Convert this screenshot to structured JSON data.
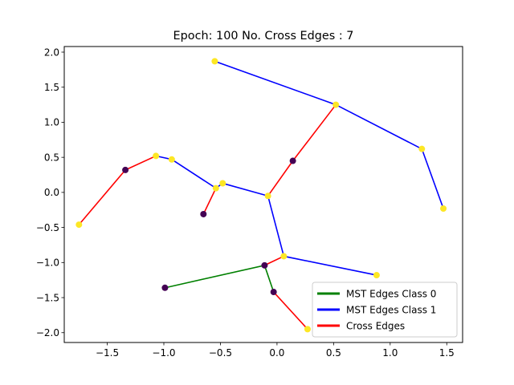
{
  "chart_data": {
    "type": "scatter",
    "title": "Epoch: 100 No. Cross Edges : 7",
    "xlabel": "",
    "ylabel": "",
    "xlim": [
      -1.88,
      1.64
    ],
    "ylim": [
      -2.14,
      2.08
    ],
    "x_ticks": [
      -1.5,
      -1.0,
      -0.5,
      0.0,
      0.5,
      1.0,
      1.5
    ],
    "x_tick_labels": [
      "−1.5",
      "−1.0",
      "−0.5",
      "0.0",
      "0.5",
      "1.0",
      "1.5"
    ],
    "y_ticks": [
      -2.0,
      -1.5,
      -1.0,
      -0.5,
      0.0,
      0.5,
      1.0,
      1.5,
      2.0
    ],
    "y_tick_labels": [
      "−2.0",
      "−1.5",
      "−1.0",
      "−0.5",
      "0.0",
      "0.5",
      "1.0",
      "1.5",
      "2.0"
    ],
    "grid": false,
    "legend_position": "lower-right",
    "nodes": [
      {
        "x": -0.55,
        "y": 1.87,
        "cls": 1
      },
      {
        "x": 0.52,
        "y": 1.25,
        "cls": 1
      },
      {
        "x": 1.28,
        "y": 0.62,
        "cls": 1
      },
      {
        "x": 1.47,
        "y": -0.23,
        "cls": 1
      },
      {
        "x": 0.14,
        "y": 0.45,
        "cls": 0
      },
      {
        "x": -0.08,
        "y": -0.05,
        "cls": 1
      },
      {
        "x": -0.48,
        "y": 0.13,
        "cls": 1
      },
      {
        "x": -0.54,
        "y": 0.06,
        "cls": 1
      },
      {
        "x": -0.65,
        "y": -0.31,
        "cls": 0
      },
      {
        "x": -0.93,
        "y": 0.47,
        "cls": 1
      },
      {
        "x": -1.07,
        "y": 0.52,
        "cls": 1
      },
      {
        "x": -1.34,
        "y": 0.32,
        "cls": 0
      },
      {
        "x": -1.75,
        "y": -0.46,
        "cls": 1
      },
      {
        "x": 0.06,
        "y": -0.91,
        "cls": 1
      },
      {
        "x": 0.88,
        "y": -1.18,
        "cls": 1
      },
      {
        "x": -0.11,
        "y": -1.04,
        "cls": 0
      },
      {
        "x": -0.99,
        "y": -1.36,
        "cls": 0
      },
      {
        "x": -0.03,
        "y": -1.42,
        "cls": 0
      },
      {
        "x": 0.27,
        "y": -1.95,
        "cls": 1
      }
    ],
    "edges": [
      {
        "from": 0,
        "to": 1,
        "kind": "mst1"
      },
      {
        "from": 1,
        "to": 2,
        "kind": "mst1"
      },
      {
        "from": 2,
        "to": 3,
        "kind": "mst1"
      },
      {
        "from": 1,
        "to": 4,
        "kind": "cross"
      },
      {
        "from": 4,
        "to": 5,
        "kind": "cross"
      },
      {
        "from": 5,
        "to": 6,
        "kind": "mst1"
      },
      {
        "from": 6,
        "to": 7,
        "kind": "mst1"
      },
      {
        "from": 7,
        "to": 8,
        "kind": "cross"
      },
      {
        "from": 7,
        "to": 9,
        "kind": "mst1"
      },
      {
        "from": 9,
        "to": 10,
        "kind": "mst1"
      },
      {
        "from": 10,
        "to": 11,
        "kind": "cross"
      },
      {
        "from": 11,
        "to": 12,
        "kind": "cross"
      },
      {
        "from": 5,
        "to": 13,
        "kind": "mst1"
      },
      {
        "from": 13,
        "to": 14,
        "kind": "mst1"
      },
      {
        "from": 13,
        "to": 15,
        "kind": "cross"
      },
      {
        "from": 15,
        "to": 16,
        "kind": "mst0"
      },
      {
        "from": 15,
        "to": 17,
        "kind": "mst0"
      },
      {
        "from": 17,
        "to": 18,
        "kind": "cross"
      }
    ],
    "legend": [
      {
        "label": "MST Edges Class 0",
        "kind": "mst0"
      },
      {
        "label": "MST Edges Class 1",
        "kind": "mst1"
      },
      {
        "label": "Cross Edges",
        "kind": "cross"
      }
    ],
    "colors": {
      "mst0": "#008000",
      "mst1": "#0000ff",
      "cross": "#ff0000",
      "node_class_0": "#440154",
      "node_class_1": "#fde725"
    }
  }
}
